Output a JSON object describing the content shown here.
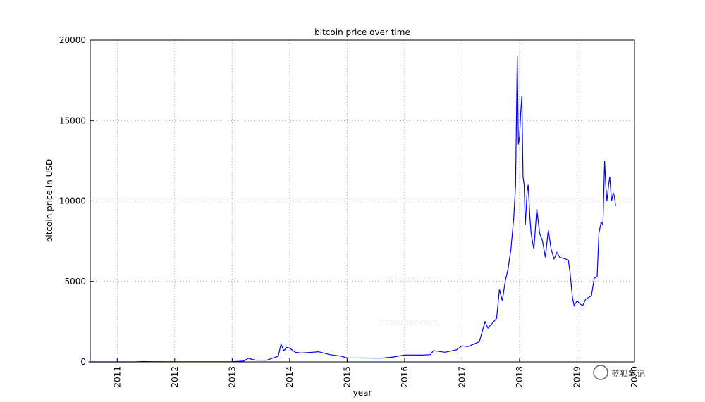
{
  "chart_data": {
    "type": "line",
    "title": "bitcoin price over time",
    "x_label": "year",
    "y_label": "bitcoin price in USD",
    "x": [
      2010.5,
      2011,
      2011.3,
      2011.45,
      2011.6,
      2012,
      2012.5,
      2013,
      2013.2,
      2013.28,
      2013.4,
      2013.6,
      2013.8,
      2013.85,
      2013.9,
      2013.95,
      2014.0,
      2014.1,
      2014.2,
      2014.4,
      2014.5,
      2014.7,
      2014.9,
      2015.0,
      2015.3,
      2015.6,
      2015.8,
      2016.0,
      2016.3,
      2016.45,
      2016.5,
      2016.7,
      2016.9,
      2017.0,
      2017.1,
      2017.2,
      2017.3,
      2017.4,
      2017.45,
      2017.55,
      2017.6,
      2017.65,
      2017.7,
      2017.75,
      2017.8,
      2017.85,
      2017.9,
      2017.93,
      2017.96,
      2017.98,
      2018.0,
      2018.02,
      2018.04,
      2018.06,
      2018.08,
      2018.1,
      2018.13,
      2018.15,
      2018.18,
      2018.2,
      2018.25,
      2018.3,
      2018.35,
      2018.4,
      2018.45,
      2018.5,
      2018.55,
      2018.6,
      2018.65,
      2018.7,
      2018.8,
      2018.85,
      2018.88,
      2018.92,
      2018.95,
      2019.0,
      2019.05,
      2019.1,
      2019.15,
      2019.2,
      2019.25,
      2019.3,
      2019.35,
      2019.38,
      2019.42,
      2019.45,
      2019.48,
      2019.5,
      2019.52,
      2019.55,
      2019.57,
      2019.6,
      2019.63,
      2019.65,
      2019.67
    ],
    "series": [
      {
        "name": "bitcoin price",
        "color": "#0000ff",
        "values": [
          0,
          0.3,
          1,
          20,
          12,
          5,
          7,
          13,
          50,
          220,
          110,
          100,
          350,
          1100,
          700,
          900,
          850,
          600,
          550,
          600,
          630,
          450,
          350,
          250,
          240,
          230,
          300,
          430,
          420,
          450,
          700,
          600,
          750,
          1000,
          950,
          1100,
          1250,
          2500,
          2100,
          2500,
          2700,
          4500,
          3800,
          5000,
          5800,
          7000,
          9000,
          11000,
          19000,
          13500,
          14000,
          15500,
          16500,
          11500,
          11000,
          8500,
          10500,
          11000,
          9000,
          8000,
          7000,
          9500,
          8000,
          7500,
          6500,
          8200,
          7000,
          6400,
          6800,
          6500,
          6400,
          6300,
          5500,
          4000,
          3500,
          3800,
          3600,
          3500,
          3900,
          4000,
          4100,
          5200,
          5300,
          8000,
          8700,
          8500,
          12500,
          11000,
          10000,
          11000,
          11500,
          10000,
          10500,
          10300,
          9700
        ]
      }
    ],
    "xlim": [
      2010.53,
      2020
    ],
    "xticks": [
      2011,
      2012,
      2013,
      2014,
      2015,
      2016,
      2017,
      2018,
      2019,
      2020
    ],
    "ylim": [
      0,
      20000
    ],
    "yticks": [
      0,
      5000,
      10000,
      15000,
      20000
    ],
    "grid": true,
    "watermarks": [
      "@hcburger",
      "hcburger.com",
      "蓝狐笔记"
    ]
  }
}
